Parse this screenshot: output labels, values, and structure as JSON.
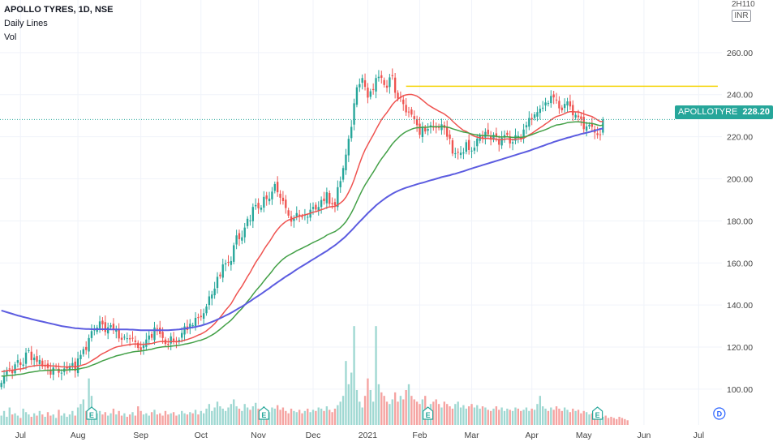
{
  "legend": {
    "title": "APOLLO TYRES, 1D, NSE",
    "line1": "Daily Lines",
    "line2": "Vol"
  },
  "currency": {
    "top": "2H110",
    "unit": "INR"
  },
  "last_price": {
    "symbol": "APOLLOTYRE",
    "value": "228.20"
  },
  "colors": {
    "up": "#26a69a",
    "down": "#ef5350",
    "vol_up": "#9fd8d2",
    "vol_down": "#f5a3a1",
    "ma_fast": "#ef5350",
    "ma_mid": "#43a047",
    "ma_slow": "#5c5ce0",
    "resistance": "#f5d50a",
    "grid": "#f0f3fa",
    "axis_text": "#444444"
  },
  "events": {
    "earnings_label": "E",
    "dividend_label": "D"
  },
  "chart_data": {
    "type": "candlestick",
    "title": "APOLLO TYRES, 1D, NSE",
    "y_ticks": [
      100,
      120,
      140,
      160,
      180,
      200,
      220,
      240,
      260
    ],
    "ylim": [
      83,
      285
    ],
    "x_labels": [
      "Jul",
      "Aug",
      "Sep",
      "Oct",
      "Nov",
      "Dec",
      "2021",
      "Feb",
      "Mar",
      "Apr",
      "May",
      "Jun",
      "Jul"
    ],
    "x_label_index": [
      7,
      28,
      51,
      73,
      94,
      114,
      134,
      153,
      172,
      194,
      213,
      235,
      255
    ],
    "resistance": {
      "value": 244,
      "from_index": 148,
      "to_index": 262
    },
    "last_price": 228.2,
    "earnings_index": [
      33,
      96,
      156,
      218
    ],
    "dividend_index": [
      259
    ],
    "closes": [
      103.0,
      106.5,
      108.8,
      109.7,
      107.6,
      111.8,
      113.8,
      111.5,
      111.7,
      117.4,
      118.5,
      113.8,
      115.0,
      113.0,
      113.9,
      110.8,
      111.1,
      110.1,
      106.9,
      110.3,
      110.8,
      107.8,
      107.8,
      109.8,
      109.8,
      111.1,
      112.4,
      108.7,
      114.6,
      116.3,
      119.0,
      118.6,
      124.3,
      127.6,
      128.3,
      129.3,
      132.2,
      130.8,
      127.2,
      129.4,
      130.4,
      128.4,
      128.5,
      124.1,
      123.5,
      124.9,
      124.2,
      123.7,
      124.2,
      122.4,
      119.6,
      118.5,
      120.8,
      123.6,
      125.5,
      124.4,
      129.3,
      128.9,
      126.2,
      124.3,
      121.5,
      121.0,
      125.1,
      123.0,
      122.2,
      123.4,
      126.7,
      129.8,
      128.1,
      131.1,
      130.4,
      133.9,
      133.8,
      134.2,
      136.1,
      139.3,
      144.1,
      145.0,
      147.8,
      153.4,
      153.7,
      159.3,
      159.8,
      160.1,
      160.9,
      168.4,
      173.1,
      171.3,
      172.2,
      176.8,
      181.0,
      180.2,
      186.6,
      187.5,
      186.0,
      186.3,
      191.4,
      190.4,
      190.6,
      193.9,
      197.5,
      193.6,
      191.0,
      189.4,
      186.1,
      182.5,
      179.6,
      181.0,
      183.7,
      182.1,
      181.8,
      182.9,
      181.9,
      185.3,
      186.6,
      185.4,
      186.6,
      189.9,
      189.4,
      193.6,
      188.1,
      187.9,
      187.3,
      196.0,
      198.9,
      205.1,
      211.5,
      219.0,
      224.7,
      235.9,
      243.5,
      245.0,
      247.9,
      243.7,
      238.6,
      241.6,
      242.2,
      247.9,
      248.5,
      248.0,
      244.6,
      243.3,
      248.2,
      248.8,
      240.9,
      238.1,
      238.7,
      235.5,
      231.6,
      231.9,
      230.5,
      228.3,
      225.5,
      220.9,
      224.8,
      222.5,
      223.7,
      225.4,
      224.6,
      224.3,
      224.2,
      225.9,
      224.2,
      220.0,
      219.0,
      212.0,
      212.1,
      212.4,
      212.4,
      212.5,
      217.4,
      213.7,
      213.4,
      214.8,
      219.1,
      220.5,
      219.2,
      222.3,
      221.2,
      218.6,
      220.9,
      219.9,
      216.2,
      219.5,
      220.8,
      220.9,
      216.8,
      217.4,
      220.7,
      220.4,
      218.7,
      223.4,
      225.5,
      228.9,
      228.2,
      230.6,
      231.7,
      233.3,
      233.8,
      236.3,
      236.0,
      239.4,
      238.7,
      237.4,
      233.5,
      232.6,
      235.6,
      236.8,
      234.4,
      230.2,
      230.4,
      229.3,
      228.4,
      223.6,
      224.9,
      225.7,
      224.7,
      222.0,
      220.8,
      220.9,
      228.2
    ],
    "series": [
      {
        "name": "MA fast",
        "values": [
          108.3,
          108.5,
          108.8,
          109.0,
          109.0,
          109.2,
          109.5,
          109.6,
          109.8,
          110.2,
          110.7,
          110.9,
          111.1,
          111.2,
          111.4,
          111.3,
          111.3,
          111.3,
          111.1,
          111.0,
          111.0,
          110.8,
          110.6,
          110.6,
          110.5,
          110.6,
          110.7,
          110.6,
          110.8,
          111.2,
          111.6,
          112.0,
          112.7,
          113.5,
          114.3,
          115.1,
          116.1,
          116.9,
          117.5,
          118.2,
          118.9,
          119.5,
          120.0,
          120.3,
          120.5,
          120.8,
          121.0,
          121.2,
          121.4,
          121.5,
          121.4,
          121.3,
          121.3,
          121.4,
          121.6,
          121.7,
          122.1,
          122.4,
          122.6,
          122.7,
          122.6,
          122.5,
          122.6,
          122.6,
          122.6,
          122.6,
          122.9,
          123.3,
          123.6,
          124.1,
          124.5,
          125.1,
          125.7,
          126.2,
          126.9,
          127.7,
          128.8,
          129.9,
          131.1,
          132.7,
          134.1,
          135.8,
          137.5,
          139.0,
          140.6,
          142.8,
          145.1,
          147.1,
          149.0,
          151.2,
          153.5,
          155.5,
          157.9,
          160.2,
          162.2,
          164.1,
          166.3,
          168.3,
          170.1,
          172.1,
          174.2,
          175.9,
          177.4,
          178.6,
          179.7,
          180.4,
          180.8,
          181.3,
          181.8,
          182.2,
          182.5,
          182.9,
          183.2,
          183.6,
          184.1,
          184.4,
          184.8,
          185.3,
          185.7,
          186.4,
          186.6,
          186.8,
          186.9,
          187.6,
          188.5,
          189.6,
          191.3,
          193.6,
          196.3,
          199.6,
          203.4,
          207.2,
          210.8,
          213.8,
          216.2,
          218.6,
          220.9,
          223.4,
          225.8,
          228.1,
          229.9,
          231.5,
          233.4,
          235.3,
          236.7,
          237.8,
          238.8,
          239.5,
          239.9,
          240.1,
          240.1,
          239.8,
          239.3,
          238.4,
          237.4,
          236.3,
          235.2,
          234.4,
          233.6,
          232.9,
          232.1,
          231.5,
          230.8,
          229.8,
          228.8,
          227.4,
          226.2,
          225.0,
          224.0,
          223.0,
          222.5,
          221.7,
          220.8,
          220.2,
          219.8,
          219.5,
          219.2,
          219.2,
          219.2,
          219.0,
          219.0,
          218.8,
          218.6,
          218.6,
          218.8,
          219.0,
          218.8,
          218.6,
          218.8,
          219.0,
          219.0,
          219.4,
          220.0,
          220.9,
          221.6,
          222.5,
          223.4,
          224.3,
          225.1,
          226.1,
          226.9,
          228.0,
          228.9,
          229.6,
          230.0,
          230.4,
          231.0,
          231.6,
          231.9,
          231.9,
          231.8,
          231.8,
          231.4,
          230.8,
          230.4,
          230.0,
          229.6,
          228.8,
          228.0,
          227.2,
          227.2
        ]
      },
      {
        "name": "MA mid",
        "values": [
          106.2,
          106.2,
          106.4,
          106.5,
          106.6,
          106.7,
          107.0,
          107.1,
          107.3,
          107.6,
          107.9,
          108.1,
          108.3,
          108.5,
          108.7,
          108.8,
          108.9,
          109.0,
          109.0,
          109.1,
          109.1,
          109.1,
          109.0,
          109.1,
          109.1,
          109.2,
          109.3,
          109.3,
          109.5,
          109.8,
          110.1,
          110.3,
          110.8,
          111.3,
          111.8,
          112.3,
          112.9,
          113.5,
          113.9,
          114.4,
          114.9,
          115.3,
          115.8,
          116.1,
          116.4,
          116.8,
          117.1,
          117.4,
          117.7,
          117.9,
          118.0,
          118.1,
          118.3,
          118.5,
          118.8,
          119.0,
          119.4,
          119.7,
          119.9,
          120.1,
          120.2,
          120.2,
          120.4,
          120.6,
          120.7,
          120.8,
          121.1,
          121.4,
          121.6,
          121.9,
          122.2,
          122.6,
          123.0,
          123.3,
          123.8,
          124.3,
          125.0,
          125.7,
          126.5,
          127.5,
          128.5,
          129.6,
          130.7,
          131.7,
          132.8,
          134.2,
          135.7,
          137.1,
          138.4,
          140.0,
          141.7,
          143.2,
          145.0,
          146.7,
          148.2,
          149.7,
          151.4,
          153.0,
          154.5,
          156.1,
          157.9,
          159.3,
          160.6,
          161.8,
          162.8,
          163.6,
          164.3,
          165.0,
          165.8,
          166.4,
          167.0,
          167.7,
          168.3,
          169.0,
          169.7,
          170.3,
          170.9,
          171.6,
          172.3,
          173.2,
          173.8,
          174.4,
          174.9,
          175.8,
          176.8,
          178.1,
          179.6,
          181.6,
          183.8,
          186.4,
          189.2,
          192.0,
          194.7,
          197.1,
          199.1,
          201.2,
          203.2,
          205.3,
          207.5,
          209.5,
          211.2,
          212.9,
          214.8,
          216.6,
          218.0,
          219.3,
          220.6,
          221.6,
          222.4,
          223.0,
          223.6,
          224.0,
          224.3,
          224.3,
          224.5,
          224.5,
          224.6,
          224.8,
          224.8,
          224.8,
          224.8,
          224.8,
          224.8,
          224.6,
          224.3,
          223.8,
          223.4,
          223.0,
          222.6,
          222.2,
          222.0,
          221.7,
          221.3,
          221.0,
          220.8,
          220.7,
          220.5,
          220.5,
          220.5,
          220.3,
          220.3,
          220.2,
          219.9,
          219.9,
          219.9,
          220.0,
          219.8,
          219.7,
          219.7,
          219.8,
          219.7,
          219.9,
          220.2,
          220.6,
          221.0,
          221.5,
          222.0,
          222.5,
          222.9,
          223.4,
          223.9,
          224.6,
          225.1,
          225.6,
          225.7,
          226.0,
          226.3,
          226.7,
          226.9,
          227.0,
          227.1,
          227.1,
          227.0,
          226.7,
          226.5,
          226.4,
          226.3,
          226.0,
          225.6,
          225.3,
          225.5
        ]
      },
      {
        "name": "MA slow",
        "values": [
          137.4,
          137.0,
          136.6,
          136.2,
          135.8,
          135.4,
          135.0,
          134.7,
          134.3,
          134.0,
          133.7,
          133.3,
          133.0,
          132.7,
          132.4,
          132.1,
          131.8,
          131.5,
          131.2,
          130.9,
          130.6,
          130.3,
          130.0,
          129.8,
          129.6,
          129.4,
          129.2,
          129.0,
          128.9,
          128.8,
          128.7,
          128.6,
          128.6,
          128.5,
          128.5,
          128.5,
          128.5,
          128.5,
          128.5,
          128.5,
          128.4,
          128.4,
          128.4,
          128.4,
          128.4,
          128.4,
          128.4,
          128.3,
          128.3,
          128.2,
          128.1,
          128.0,
          128.0,
          128.0,
          128.0,
          128.0,
          128.0,
          128.0,
          128.0,
          128.0,
          128.0,
          128.0,
          128.1,
          128.2,
          128.3,
          128.4,
          128.6,
          128.8,
          129.0,
          129.2,
          129.4,
          129.6,
          129.9,
          130.2,
          130.6,
          131.0,
          131.5,
          132.0,
          132.5,
          133.1,
          133.7,
          134.3,
          135.0,
          135.6,
          136.3,
          137.0,
          137.8,
          138.6,
          139.3,
          140.1,
          141.0,
          141.8,
          142.7,
          143.6,
          144.4,
          145.3,
          146.2,
          147.1,
          148.0,
          149.0,
          149.9,
          150.8,
          151.7,
          152.6,
          153.5,
          154.3,
          155.1,
          156.0,
          156.9,
          157.7,
          158.5,
          159.3,
          160.1,
          160.9,
          161.7,
          162.5,
          163.3,
          164.1,
          164.9,
          165.7,
          166.6,
          167.5,
          168.4,
          169.4,
          170.5,
          171.6,
          172.8,
          174.1,
          175.4,
          176.8,
          178.2,
          179.6,
          180.9,
          182.3,
          183.6,
          184.9,
          186.1,
          187.3,
          188.4,
          189.4,
          190.4,
          191.3,
          192.1,
          192.9,
          193.6,
          194.2,
          194.8,
          195.3,
          195.8,
          196.2,
          196.6,
          197.0,
          197.4,
          197.8,
          198.1,
          198.5,
          198.9,
          199.3,
          199.6,
          200.0,
          200.4,
          200.8,
          201.1,
          201.4,
          201.7,
          202.1,
          202.4,
          202.8,
          203.2,
          203.6,
          204.0,
          204.5,
          204.9,
          205.3,
          205.7,
          206.1,
          206.5,
          206.9,
          207.3,
          207.7,
          208.1,
          208.5,
          208.9,
          209.3,
          209.7,
          210.1,
          210.5,
          210.9,
          211.3,
          211.7,
          212.1,
          212.5,
          212.9,
          213.3,
          213.8,
          214.3,
          214.7,
          215.2,
          215.6,
          216.1,
          216.6,
          217.0,
          217.5,
          217.9,
          218.3,
          218.7,
          219.1,
          219.5,
          219.8,
          220.2,
          220.6,
          220.9,
          221.3,
          221.6,
          221.9,
          222.2,
          222.6,
          222.9,
          223.3,
          223.7,
          223.9
        ]
      }
    ],
    "volume": [
      8,
      12,
      7,
      15,
      9,
      10,
      8,
      6,
      14,
      11,
      9,
      7,
      10,
      8,
      12,
      9,
      7,
      11,
      8,
      9,
      6,
      13,
      8,
      10,
      7,
      9,
      12,
      8,
      15,
      18,
      22,
      12,
      40,
      25,
      14,
      10,
      12,
      9,
      11,
      8,
      10,
      14,
      9,
      12,
      8,
      10,
      7,
      9,
      11,
      8,
      16,
      12,
      9,
      10,
      8,
      11,
      13,
      9,
      10,
      8,
      12,
      9,
      10,
      11,
      8,
      9,
      12,
      10,
      9,
      11,
      10,
      13,
      9,
      12,
      10,
      14,
      18,
      12,
      15,
      20,
      16,
      14,
      12,
      15,
      18,
      22,
      16,
      14,
      12,
      18,
      15,
      13,
      16,
      19,
      14,
      12,
      16,
      13,
      11,
      15,
      14,
      17,
      13,
      15,
      12,
      10,
      14,
      12,
      11,
      13,
      10,
      12,
      14,
      11,
      13,
      12,
      15,
      14,
      12,
      16,
      13,
      11,
      14,
      17,
      20,
      25,
      55,
      35,
      45,
      85,
      30,
      20,
      15,
      25,
      40,
      30,
      20,
      85,
      35,
      28,
      25,
      20,
      18,
      22,
      28,
      20,
      25,
      22,
      30,
      35,
      25,
      22,
      20,
      18,
      22,
      25,
      15,
      18,
      20,
      22,
      18,
      15,
      20,
      18,
      16,
      14,
      18,
      20,
      15,
      17,
      14,
      16,
      18,
      15,
      17,
      14,
      16,
      15,
      13,
      12,
      14,
      16,
      13,
      15,
      12,
      14,
      13,
      12,
      15,
      14,
      12,
      13,
      15,
      12,
      14,
      13,
      18,
      25,
      16,
      14,
      12,
      15,
      13,
      16,
      14,
      12,
      15,
      13,
      11,
      14,
      12,
      13,
      10,
      12,
      11,
      9,
      10,
      8,
      9,
      8,
      7,
      8,
      6,
      7,
      6,
      5,
      7,
      6,
      5,
      4
    ],
    "volume_max": 90
  }
}
